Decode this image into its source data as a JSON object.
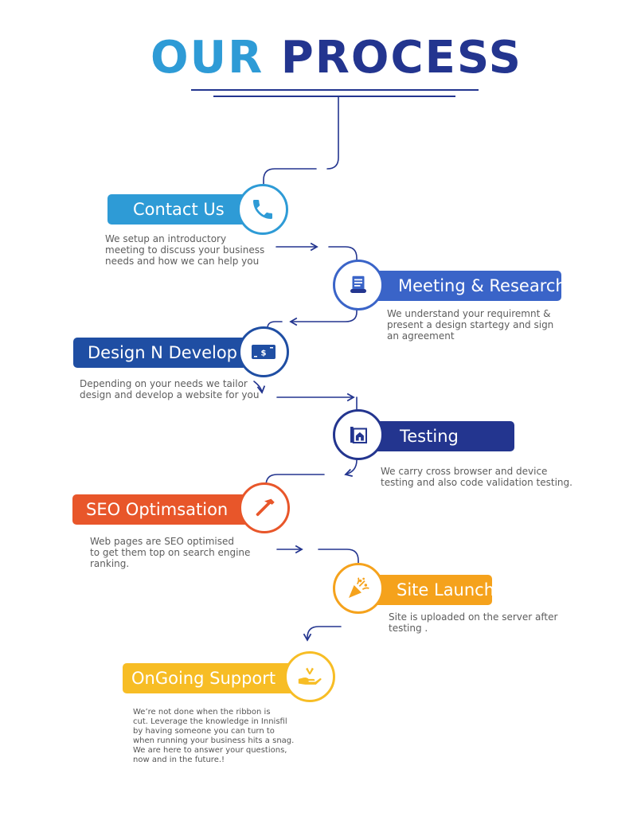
{
  "title": {
    "word1": "OUR",
    "word2": "PROCESS"
  },
  "colors": {
    "light_blue": "#2e9bd6",
    "royal_blue": "#3a64c8",
    "dark_blue": "#1f4ea3",
    "navy": "#23358f",
    "orange_red": "#e8562a",
    "orange": "#f5a21c",
    "yellow": "#f7bd25"
  },
  "steps": [
    {
      "label": "Contact Us",
      "icon": "phone-icon",
      "description": "We setup an introductory\nmeeting to discuss your business\nneeds and how we can help you"
    },
    {
      "label": "Meeting & Research",
      "icon": "document-scroll-icon",
      "description": "We understand your requiremnt &\npresent a design startegy and sign\n an agreement"
    },
    {
      "label": "Design N Develop",
      "icon": "money-icon",
      "description": "Depending on your needs we tailor\ndesign and develop a website for you"
    },
    {
      "label": "Testing",
      "icon": "house-blueprint-icon",
      "description": "We carry cross browser and device\n testing and also code validation testing."
    },
    {
      "label": "SEO Optimsation",
      "icon": "hammer-icon",
      "description": "Web pages are SEO optimised\nto get them top on search engine\nranking."
    },
    {
      "label": "Site Launch",
      "icon": "party-popper-icon",
      "description": "Site is uploaded on the server after\ntesting ."
    },
    {
      "label": "OnGoing  Support",
      "icon": "hand-check-icon",
      "description": "We’re not done when the ribbon is\ncut. Leverage the knowledge in Innisfil\nby having someone you can turn to\nwhen running your business hits a snag.\nWe are here to answer your questions,\nnow and in the future.!"
    }
  ]
}
